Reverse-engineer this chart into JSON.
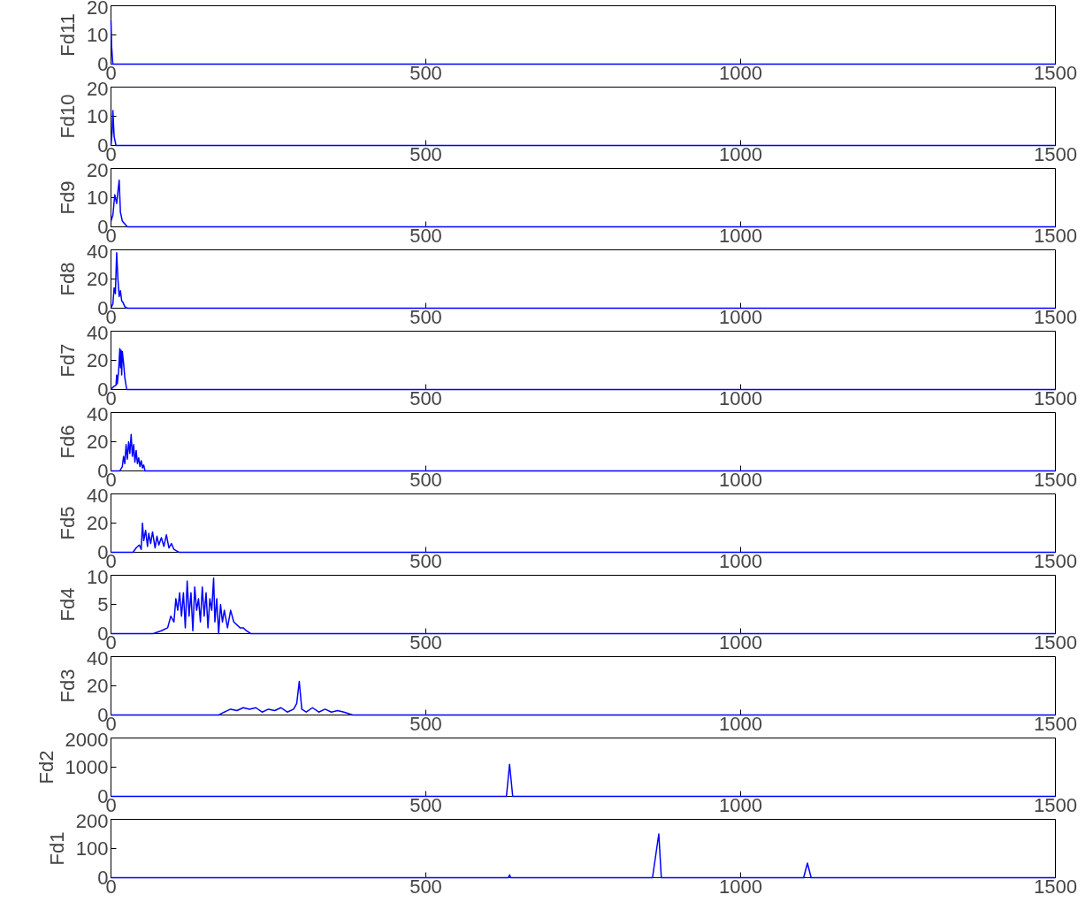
{
  "chart_data": [
    {
      "type": "line",
      "ylabel": "Fd11",
      "color": "#0000ff",
      "xlim": [
        0,
        1500
      ],
      "xticks": [
        0,
        500,
        1000,
        1500
      ],
      "ylim": [
        0,
        20
      ],
      "yticks": [
        0,
        10,
        20
      ],
      "x": [
        0,
        1,
        3,
        1500
      ],
      "values": [
        15,
        6,
        0,
        0
      ]
    },
    {
      "type": "line",
      "ylabel": "Fd10",
      "color": "#0000ff",
      "xlim": [
        0,
        1500
      ],
      "xticks": [
        0,
        500,
        1000,
        1500
      ],
      "ylim": [
        0,
        20
      ],
      "yticks": [
        0,
        10,
        20
      ],
      "x": [
        0,
        2,
        3,
        5,
        8,
        1500
      ],
      "values": [
        0,
        5,
        12,
        3,
        0,
        0
      ]
    },
    {
      "type": "line",
      "ylabel": "Fd9",
      "color": "#0000ff",
      "xlim": [
        0,
        1500
      ],
      "xticks": [
        0,
        500,
        1000,
        1500
      ],
      "ylim": [
        0,
        20
      ],
      "yticks": [
        0,
        10,
        20
      ],
      "x": [
        0,
        3,
        6,
        9,
        11,
        13,
        15,
        18,
        22,
        26,
        1500
      ],
      "values": [
        2,
        4,
        11,
        8,
        12,
        16,
        5,
        2,
        1,
        0,
        0
      ]
    },
    {
      "type": "line",
      "ylabel": "Fd8",
      "color": "#0000ff",
      "xlim": [
        0,
        1500
      ],
      "xticks": [
        0,
        500,
        1000,
        1500
      ],
      "ylim": [
        0,
        40
      ],
      "yticks": [
        0,
        20,
        40
      ],
      "x": [
        0,
        3,
        5,
        7,
        9,
        11,
        13,
        15,
        17,
        19,
        22,
        26,
        1500
      ],
      "values": [
        0,
        3,
        14,
        10,
        38,
        20,
        8,
        12,
        5,
        4,
        1,
        0,
        0
      ]
    },
    {
      "type": "line",
      "ylabel": "Fd7",
      "color": "#0000ff",
      "xlim": [
        0,
        1500
      ],
      "xticks": [
        0,
        500,
        1000,
        1500
      ],
      "ylim": [
        0,
        40
      ],
      "yticks": [
        0,
        20,
        40
      ],
      "x": [
        0,
        4,
        8,
        9,
        10,
        12,
        14,
        15,
        16,
        17,
        18,
        20,
        22,
        25,
        1500
      ],
      "values": [
        0,
        2,
        3,
        10,
        4,
        12,
        28,
        15,
        27,
        10,
        26,
        18,
        8,
        0,
        0
      ]
    },
    {
      "type": "line",
      "ylabel": "Fd6",
      "color": "#0000ff",
      "xlim": [
        0,
        1500
      ],
      "xticks": [
        0,
        500,
        1000,
        1500
      ],
      "ylim": [
        0,
        40
      ],
      "yticks": [
        0,
        20,
        40
      ],
      "x": [
        0,
        14,
        18,
        20,
        22,
        24,
        26,
        28,
        30,
        32,
        34,
        36,
        38,
        40,
        42,
        44,
        46,
        48,
        50,
        52,
        54,
        1500
      ],
      "values": [
        0,
        0,
        3,
        10,
        5,
        18,
        8,
        20,
        12,
        25,
        10,
        18,
        6,
        14,
        5,
        9,
        3,
        7,
        2,
        4,
        0,
        0
      ]
    },
    {
      "type": "line",
      "ylabel": "Fd5",
      "color": "#0000ff",
      "xlim": [
        0,
        1500
      ],
      "xticks": [
        0,
        500,
        1000,
        1500
      ],
      "ylim": [
        0,
        40
      ],
      "yticks": [
        0,
        20,
        40
      ],
      "x": [
        0,
        35,
        40,
        45,
        48,
        50,
        52,
        55,
        58,
        60,
        63,
        66,
        70,
        73,
        76,
        80,
        84,
        88,
        92,
        96,
        100,
        104,
        108,
        1500
      ],
      "values": [
        0,
        0,
        3,
        5,
        2,
        20,
        8,
        15,
        4,
        13,
        6,
        14,
        3,
        11,
        5,
        10,
        4,
        12,
        3,
        6,
        2,
        1,
        0,
        0
      ]
    },
    {
      "type": "line",
      "ylabel": "Fd4",
      "color": "#0000ff",
      "xlim": [
        0,
        1500
      ],
      "xticks": [
        0,
        500,
        1000,
        1500
      ],
      "ylim": [
        0,
        10
      ],
      "yticks": [
        0,
        5,
        10
      ],
      "x": [
        0,
        67,
        80,
        90,
        95,
        100,
        103,
        106,
        109,
        112,
        115,
        118,
        121,
        124,
        127,
        130,
        133,
        136,
        139,
        142,
        145,
        148,
        151,
        154,
        157,
        160,
        163,
        165,
        168,
        171,
        174,
        177,
        180,
        185,
        190,
        195,
        200,
        205,
        210,
        215,
        222,
        1500
      ],
      "values": [
        0,
        0,
        0.5,
        1,
        3,
        2,
        6,
        4,
        7,
        3,
        7,
        1,
        9,
        3,
        7,
        0.5,
        8,
        4,
        6,
        2,
        8,
        3,
        7,
        1,
        6,
        4,
        9.5,
        2,
        6,
        0,
        5,
        2,
        4,
        1,
        4,
        2,
        1.5,
        1,
        1,
        0.5,
        0,
        0
      ]
    },
    {
      "type": "line",
      "ylabel": "Fd3",
      "color": "#0000ff",
      "xlim": [
        0,
        1500
      ],
      "xticks": [
        0,
        500,
        1000,
        1500
      ],
      "ylim": [
        0,
        40
      ],
      "yticks": [
        0,
        20,
        40
      ],
      "x": [
        0,
        171,
        180,
        190,
        200,
        210,
        220,
        230,
        240,
        250,
        260,
        270,
        280,
        290,
        295,
        299,
        303,
        310,
        320,
        330,
        340,
        350,
        360,
        370,
        384,
        1500
      ],
      "values": [
        0,
        0,
        2,
        4,
        3,
        5,
        4,
        5,
        2,
        4,
        3,
        5,
        2,
        4,
        8,
        23,
        4,
        2,
        5,
        2,
        4,
        2,
        3,
        2,
        0,
        0
      ]
    },
    {
      "type": "line",
      "ylabel": "Fd2",
      "color": "#0000ff",
      "xlim": [
        0,
        1500
      ],
      "xticks": [
        0,
        500,
        1000,
        1500
      ],
      "ylim": [
        0,
        2000
      ],
      "yticks": [
        0,
        1000,
        2000
      ],
      "x": [
        0,
        628,
        633,
        638,
        1500
      ],
      "values": [
        0,
        0,
        1100,
        0,
        0
      ]
    },
    {
      "type": "line",
      "ylabel": "Fd1",
      "color": "#0000ff",
      "xlim": [
        0,
        1500
      ],
      "xticks": [
        0,
        500,
        1000,
        1500
      ],
      "ylim": [
        0,
        200
      ],
      "yticks": [
        0,
        100,
        200
      ],
      "x": [
        0,
        631,
        633,
        635,
        860,
        870,
        874,
        1100,
        1106,
        1112,
        1500
      ],
      "values": [
        0,
        0,
        10,
        0,
        0,
        150,
        0,
        0,
        50,
        0,
        0
      ]
    }
  ]
}
